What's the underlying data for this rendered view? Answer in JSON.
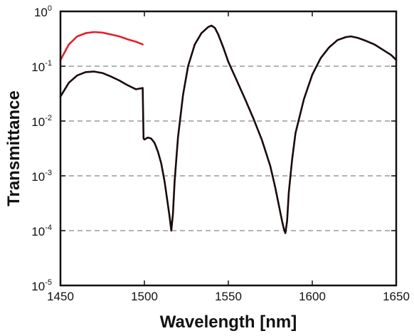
{
  "chart_data": {
    "type": "line",
    "title": "",
    "xlabel": "Wavelength [nm]",
    "ylabel": "Transmittance",
    "xlim": [
      1450,
      1650
    ],
    "ylim": [
      1e-05,
      1
    ],
    "yscale": "log",
    "grid": "horizontal dashed at major decades",
    "legend": "none",
    "x_ticks": [
      "1450",
      "1500",
      "1550",
      "1600",
      "1650"
    ],
    "y_ticks": [
      {
        "base": "10",
        "exp": "-5",
        "value": 1e-05
      },
      {
        "base": "10",
        "exp": "-4",
        "value": 0.0001
      },
      {
        "base": "10",
        "exp": "-3",
        "value": 0.001
      },
      {
        "base": "10",
        "exp": "-2",
        "value": 0.01
      },
      {
        "base": "10",
        "exp": "-1",
        "value": 0.1
      },
      {
        "base": "10",
        "exp": "0",
        "value": 1
      }
    ],
    "series": [
      {
        "color": "#e0212b",
        "x": [
          1450,
          1455,
          1460,
          1465,
          1470,
          1475,
          1480,
          1485,
          1490,
          1495,
          1499
        ],
        "y": [
          0.13,
          0.25,
          0.35,
          0.4,
          0.42,
          0.41,
          0.38,
          0.35,
          0.31,
          0.28,
          0.25
        ]
      },
      {
        "color": "#1a0a0a",
        "x": [
          1450,
          1455,
          1460,
          1465,
          1470,
          1475,
          1480,
          1485,
          1490,
          1495,
          1499,
          1499.5,
          1500,
          1502,
          1504,
          1506,
          1508,
          1510,
          1512,
          1514,
          1515,
          1516,
          1517,
          1518,
          1520,
          1523,
          1526,
          1530,
          1534,
          1538,
          1540,
          1542,
          1544,
          1547,
          1550,
          1555,
          1560,
          1565,
          1570,
          1575,
          1578,
          1580,
          1582,
          1583,
          1584,
          1585,
          1586,
          1588,
          1590,
          1595,
          1600,
          1605,
          1610,
          1615,
          1620,
          1623,
          1627,
          1632,
          1637,
          1642,
          1647,
          1650
        ],
        "y": [
          0.028,
          0.05,
          0.068,
          0.078,
          0.08,
          0.075,
          0.065,
          0.055,
          0.045,
          0.038,
          0.04,
          0.0048,
          0.0046,
          0.005,
          0.0048,
          0.004,
          0.0028,
          0.0017,
          0.0008,
          0.0003,
          0.00018,
          0.0001,
          0.0002,
          0.0008,
          0.005,
          0.03,
          0.1,
          0.25,
          0.4,
          0.52,
          0.55,
          0.5,
          0.38,
          0.22,
          0.12,
          0.055,
          0.025,
          0.011,
          0.0045,
          0.0015,
          0.0006,
          0.0003,
          0.00015,
          0.00011,
          9e-05,
          0.00015,
          0.0005,
          0.002,
          0.006,
          0.025,
          0.07,
          0.14,
          0.22,
          0.3,
          0.34,
          0.35,
          0.33,
          0.29,
          0.25,
          0.2,
          0.16,
          0.13
        ]
      }
    ]
  }
}
